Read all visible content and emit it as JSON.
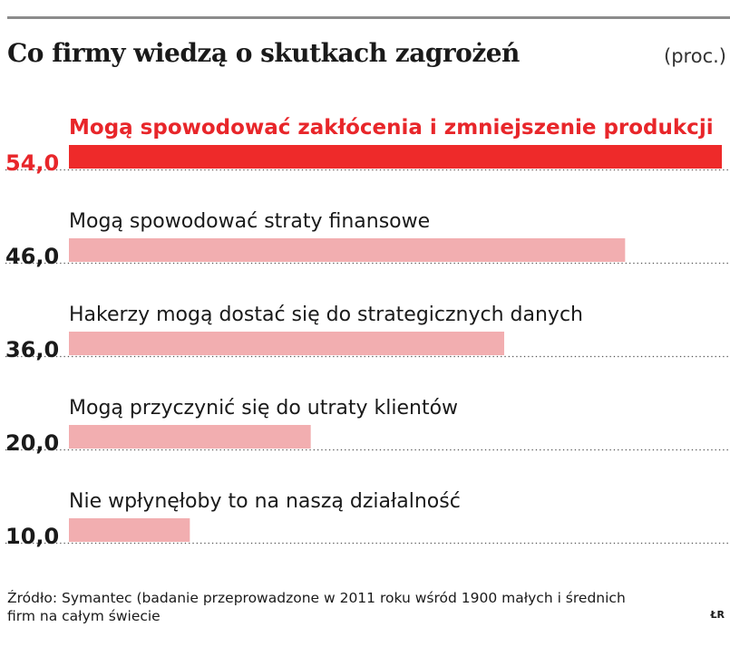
{
  "header": {
    "title": "Co firmy wiedzą o skutkach zagrożeń",
    "unit": "(proc.)"
  },
  "footer": {
    "source": "Źródło: Symantec (badanie przeprowadzone w 2011 roku wśród 1900 małych i średnich firm na całym świecie",
    "credit": "ŁR"
  },
  "colors": {
    "highlight_bar": "#ee2a2a",
    "highlight_text": "#e8262a",
    "bar": "#f2aeb0",
    "text": "#1a1a1a",
    "dots": "#555555"
  },
  "chart_data": {
    "type": "bar",
    "orientation": "horizontal",
    "xlim": [
      0,
      54
    ],
    "categories": [
      "Mogą spowodować zakłócenia i zmniejszenie produkcji",
      "Mogą spowodować straty finansowe",
      "Hakerzy mogą dostać się do strategicznych danych",
      "Mogą przyczynić się do utraty klientów",
      "Nie wpłynęłoby to na naszą działalność"
    ],
    "values": [
      54.0,
      46.0,
      36.0,
      20.0,
      10.0
    ],
    "value_labels": [
      "54,0",
      "46,0",
      "36,0",
      "20,0",
      "10,0"
    ],
    "highlight_index": 0
  }
}
